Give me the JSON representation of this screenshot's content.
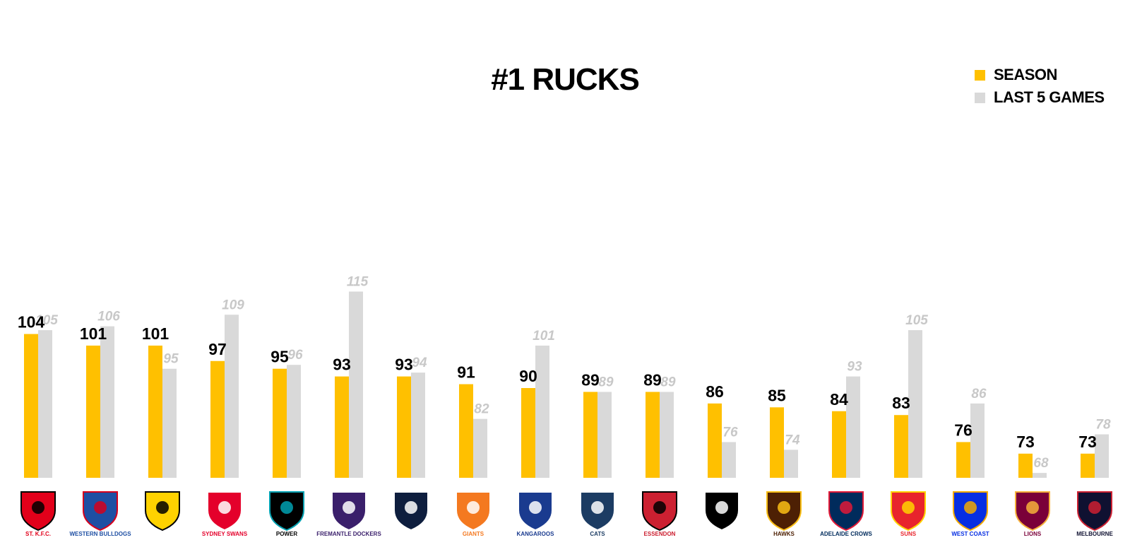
{
  "chart_data": {
    "type": "bar",
    "title": "#1 RUCKS",
    "legend_placement": "top-right",
    "grid": false,
    "ylim": [
      0,
      120
    ],
    "categories": [
      "St Kilda",
      "Western Bulldogs",
      "Richmond",
      "Sydney Swans",
      "Port Adelaide",
      "Fremantle Dockers",
      "Carlton",
      "GWS Giants",
      "North Melbourne Kangaroos",
      "Geelong Cats",
      "Essendon",
      "Collingwood",
      "Hawthorn Hawks",
      "Adelaide Crows",
      "Gold Coast Suns",
      "West Coast",
      "Brisbane Lions",
      "Melbourne"
    ],
    "series": [
      {
        "name": "SEASON",
        "color": "#FFC000",
        "values": [
          104,
          101,
          101,
          97,
          95,
          93,
          93,
          91,
          90,
          89,
          89,
          86,
          85,
          84,
          83,
          76,
          73,
          73
        ]
      },
      {
        "name": "LAST 5 GAMES",
        "color": "#D9D9D9",
        "values": [
          105,
          106,
          95,
          109,
          96,
          115,
          94,
          82,
          101,
          89,
          89,
          76,
          74,
          93,
          105,
          86,
          68,
          78
        ]
      }
    ]
  },
  "logos": [
    {
      "icon": "st-kilda-logo",
      "text": "ST. K.F.C.",
      "primary": "#E2001A",
      "secondary": "#000000"
    },
    {
      "icon": "western-bulldogs-logo",
      "text": "WESTERN BULLDOGS",
      "primary": "#1E4FA3",
      "secondary": "#D6001C"
    },
    {
      "icon": "richmond-tigers-logo",
      "text": "",
      "primary": "#FFD200",
      "secondary": "#000000"
    },
    {
      "icon": "sydney-swans-logo",
      "text": "SYDNEY SWANS",
      "primary": "#E4002B",
      "secondary": "#ffffff"
    },
    {
      "icon": "port-adelaide-power-logo",
      "text": "POWER",
      "primary": "#000000",
      "secondary": "#00A0B0"
    },
    {
      "icon": "fremantle-dockers-logo",
      "text": "FREMANTLE DOCKERS",
      "primary": "#3A1F6B",
      "secondary": "#ffffff"
    },
    {
      "icon": "carlton-logo",
      "text": "",
      "primary": "#0E1E3E",
      "secondary": "#ffffff"
    },
    {
      "icon": "gws-giants-logo",
      "text": "GIANTS",
      "primary": "#F47920",
      "secondary": "#ffffff"
    },
    {
      "icon": "kangaroos-logo",
      "text": "KANGAROOS",
      "primary": "#1A3B8F",
      "secondary": "#ffffff"
    },
    {
      "icon": "geelong-cats-logo",
      "text": "CATS",
      "primary": "#1C3C63",
      "secondary": "#ffffff"
    },
    {
      "icon": "essendon-logo",
      "text": "ESSENDON",
      "primary": "#CC2031",
      "secondary": "#000000"
    },
    {
      "icon": "collingwood-logo",
      "text": "",
      "primary": "#000000",
      "secondary": "#ffffff"
    },
    {
      "icon": "hawthorn-hawks-logo",
      "text": "HAWKS",
      "primary": "#4D2004",
      "secondary": "#FBBF15"
    },
    {
      "icon": "adelaide-crows-logo",
      "text": "ADELAIDE CROWS",
      "primary": "#002B5C",
      "secondary": "#E21937"
    },
    {
      "icon": "gold-coast-suns-logo",
      "text": "SUNS",
      "primary": "#E8242C",
      "secondary": "#FFD200"
    },
    {
      "icon": "west-coast-eagles-logo",
      "text": "WEST COAST",
      "primary": "#062EE2",
      "secondary": "#F2A900"
    },
    {
      "icon": "brisbane-lions-logo",
      "text": "LIONS",
      "primary": "#7A0039",
      "secondary": "#F6B13B"
    },
    {
      "icon": "melbourne-logo",
      "text": "MELBOURNE",
      "primary": "#0F1131",
      "secondary": "#CC2031"
    }
  ]
}
